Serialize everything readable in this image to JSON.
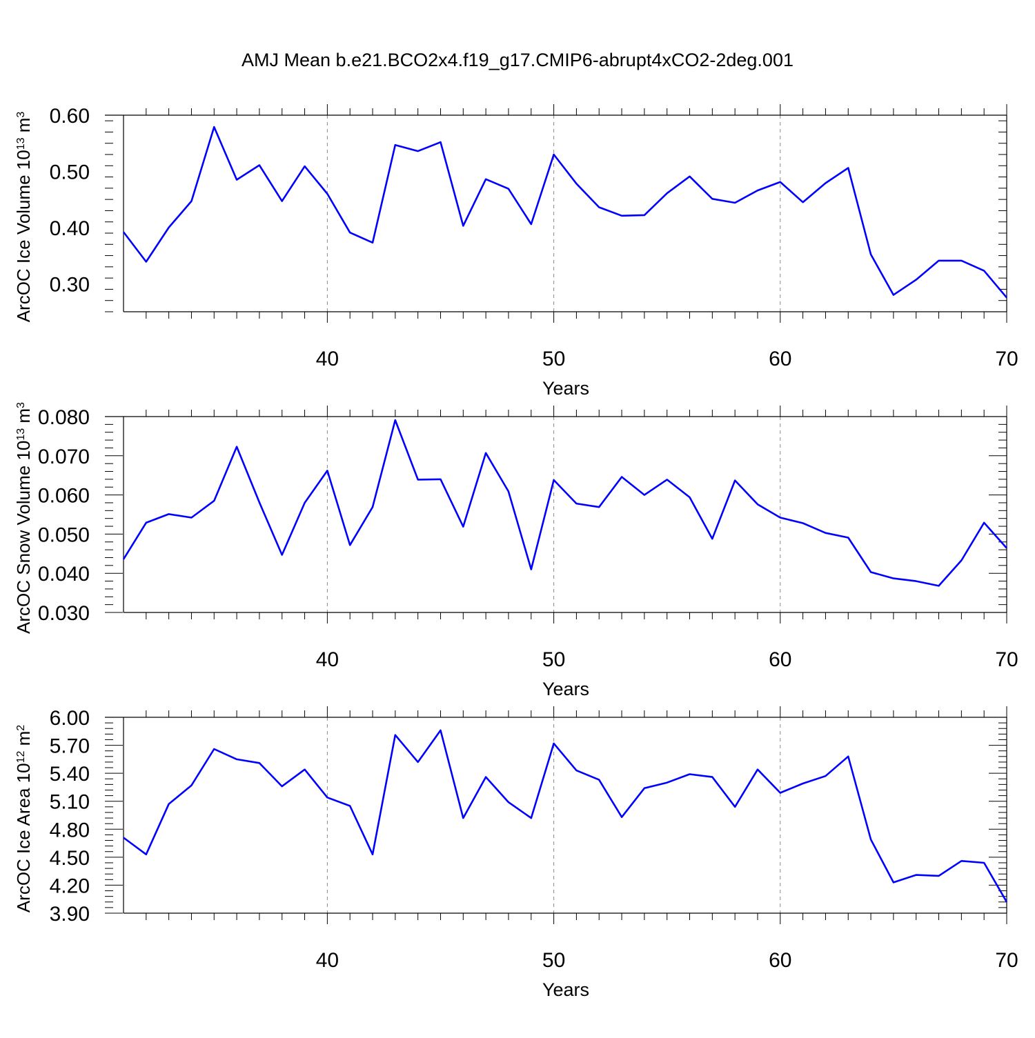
{
  "title": "AMJ Mean b.e21.BCO2x4.f19_g17.CMIP6-abrupt4xCO2-2deg.001",
  "colors": {
    "line": "#0000ff",
    "axis": "#000000",
    "grid": "#888888"
  },
  "chart_data": [
    {
      "type": "line",
      "ylabel_main": "ArcOC Ice Volume 10",
      "ylabel_exp1": "13",
      "ylabel_unit": " m",
      "ylabel_exp2": "3",
      "xlabel": "Years",
      "xlim": [
        31,
        70
      ],
      "ylim": [
        0.25,
        0.6
      ],
      "y_ticks": [
        0.3,
        0.4,
        0.5,
        0.6
      ],
      "y_tick_labels": [
        "0.30",
        "0.40",
        "0.50",
        "0.60"
      ],
      "x_ticks": [
        40,
        50,
        60,
        70
      ],
      "x_tick_labels": [
        "40",
        "50",
        "60",
        "70"
      ],
      "grid_x": [
        40,
        50,
        60
      ],
      "x": [
        31,
        32,
        33,
        34,
        35,
        36,
        37,
        38,
        39,
        40,
        41,
        42,
        43,
        44,
        45,
        46,
        47,
        48,
        49,
        50,
        51,
        52,
        53,
        54,
        55,
        56,
        57,
        58,
        59,
        60,
        61,
        62,
        63,
        64,
        65,
        66,
        67,
        68,
        69,
        70
      ],
      "series": [
        {
          "name": "Ice Volume",
          "values": [
            0.392,
            0.339,
            0.4,
            0.447,
            0.579,
            0.485,
            0.511,
            0.447,
            0.509,
            0.46,
            0.391,
            0.373,
            0.547,
            0.536,
            0.552,
            0.403,
            0.486,
            0.469,
            0.406,
            0.53,
            0.478,
            0.436,
            0.421,
            0.422,
            0.461,
            0.491,
            0.451,
            0.444,
            0.466,
            0.481,
            0.445,
            0.479,
            0.506,
            0.352,
            0.28,
            0.307,
            0.341,
            0.341,
            0.323,
            0.275
          ]
        }
      ]
    },
    {
      "type": "line",
      "ylabel_main": "ArcOC Snow Volume 10",
      "ylabel_exp1": "13",
      "ylabel_unit": " m",
      "ylabel_exp2": "3",
      "xlabel": "Years",
      "xlim": [
        31,
        70
      ],
      "ylim": [
        0.03,
        0.08
      ],
      "y_ticks": [
        0.03,
        0.04,
        0.05,
        0.06,
        0.07,
        0.08
      ],
      "y_tick_labels": [
        "0.030",
        "0.040",
        "0.050",
        "0.060",
        "0.070",
        "0.080"
      ],
      "x_ticks": [
        40,
        50,
        60,
        70
      ],
      "x_tick_labels": [
        "40",
        "50",
        "60",
        "70"
      ],
      "grid_x": [
        40,
        50,
        60
      ],
      "x": [
        31,
        32,
        33,
        34,
        35,
        36,
        37,
        38,
        39,
        40,
        41,
        42,
        43,
        44,
        45,
        46,
        47,
        48,
        49,
        50,
        51,
        52,
        53,
        54,
        55,
        56,
        57,
        58,
        59,
        60,
        61,
        62,
        63,
        64,
        65,
        66,
        67,
        68,
        69,
        70
      ],
      "series": [
        {
          "name": "Snow Volume",
          "values": [
            0.0436,
            0.0529,
            0.0551,
            0.0542,
            0.0585,
            0.0723,
            0.0581,
            0.0447,
            0.058,
            0.0662,
            0.0472,
            0.0569,
            0.0791,
            0.0639,
            0.064,
            0.0519,
            0.0707,
            0.0609,
            0.041,
            0.0638,
            0.0578,
            0.0569,
            0.0646,
            0.06,
            0.0639,
            0.0594,
            0.0488,
            0.0637,
            0.0576,
            0.0542,
            0.0528,
            0.0503,
            0.0491,
            0.0403,
            0.0387,
            0.038,
            0.0368,
            0.0433,
            0.0529,
            0.0464
          ]
        }
      ]
    },
    {
      "type": "line",
      "ylabel_main": "ArcOC Ice Area 10",
      "ylabel_exp1": "12",
      "ylabel_unit": " m",
      "ylabel_exp2": "2",
      "xlabel": "Years",
      "xlim": [
        31,
        70
      ],
      "ylim": [
        3.9,
        6.0
      ],
      "y_ticks": [
        3.9,
        4.2,
        4.5,
        4.8,
        5.1,
        5.4,
        5.7,
        6.0
      ],
      "y_tick_labels": [
        "3.90",
        "4.20",
        "4.50",
        "4.80",
        "5.10",
        "5.40",
        "5.70",
        "6.00"
      ],
      "x_ticks": [
        40,
        50,
        60,
        70
      ],
      "x_tick_labels": [
        "40",
        "50",
        "60",
        "70"
      ],
      "grid_x": [
        40,
        50,
        60
      ],
      "x": [
        31,
        32,
        33,
        34,
        35,
        36,
        37,
        38,
        39,
        40,
        41,
        42,
        43,
        44,
        45,
        46,
        47,
        48,
        49,
        50,
        51,
        52,
        53,
        54,
        55,
        56,
        57,
        58,
        59,
        60,
        61,
        62,
        63,
        64,
        65,
        66,
        67,
        68,
        69,
        70
      ],
      "series": [
        {
          "name": "Ice Area",
          "values": [
            4.71,
            4.53,
            5.07,
            5.27,
            5.66,
            5.55,
            5.51,
            5.26,
            5.44,
            5.14,
            5.05,
            4.53,
            5.81,
            5.52,
            5.86,
            4.92,
            5.36,
            5.09,
            4.92,
            5.72,
            5.43,
            5.33,
            4.93,
            5.24,
            5.3,
            5.39,
            5.36,
            5.04,
            5.44,
            5.19,
            5.29,
            5.37,
            5.58,
            4.69,
            4.23,
            4.31,
            4.3,
            4.46,
            4.44,
            4.02
          ]
        }
      ]
    }
  ]
}
